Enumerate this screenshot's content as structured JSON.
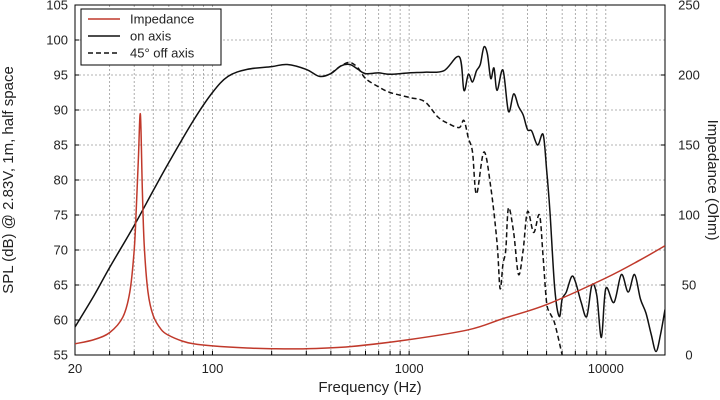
{
  "chart_data": {
    "type": "line",
    "xlabel": "Frequency (Hz)",
    "ylabel_left": "SPL (dB) @ 2.83V, 1m, half space",
    "ylabel_right": "Impedance (Ohm)",
    "x_scale": "log",
    "xlim": [
      20,
      20000
    ],
    "ylim_left": [
      55,
      105
    ],
    "ylim_right": [
      0,
      250
    ],
    "x_tick_labels": [
      "20",
      "100",
      "1000",
      "10000"
    ],
    "x_tick_values": [
      20,
      100,
      1000,
      10000
    ],
    "y_left_ticks": [
      55,
      60,
      65,
      70,
      75,
      80,
      85,
      90,
      95,
      100,
      105
    ],
    "y_right_ticks": [
      0,
      50,
      100,
      150,
      200,
      250
    ],
    "grid": true,
    "legend_position": "top-left",
    "series": [
      {
        "name": "Impedance",
        "axis": "right",
        "color": "#c0392b",
        "dash": "solid",
        "x": [
          20,
          25,
          30,
          35,
          38,
          40,
          41,
          42,
          43,
          44,
          45,
          47,
          50,
          55,
          60,
          70,
          80,
          100,
          150,
          200,
          300,
          500,
          1000,
          2000,
          3000,
          5000,
          10000,
          15000,
          20000
        ],
        "y": [
          8,
          11,
          16,
          27,
          45,
          75,
          105,
          140,
          172,
          118,
          78,
          45,
          28,
          18,
          14,
          10,
          8,
          6.5,
          5,
          4.5,
          4.5,
          6,
          11,
          18,
          26,
          36,
          55,
          68,
          78
        ]
      },
      {
        "name": "on axis",
        "axis": "left",
        "color": "#111111",
        "dash": "solid",
        "x": [
          20,
          25,
          30,
          40,
          50,
          60,
          80,
          100,
          120,
          150,
          200,
          240,
          300,
          350,
          400,
          450,
          500,
          550,
          600,
          700,
          800,
          1000,
          1200,
          1500,
          1800,
          1900,
          2000,
          2100,
          2200,
          2300,
          2400,
          2500,
          2600,
          2700,
          2800,
          3000,
          3200,
          3400,
          3600,
          3800,
          4000,
          4200,
          4500,
          4800,
          5000,
          5200,
          5500,
          5800,
          6000,
          6300,
          6700,
          7000,
          7500,
          8000,
          8500,
          9000,
          9500,
          10000,
          11000,
          12000,
          13000,
          14000,
          15000,
          16000,
          17000,
          18000,
          19000,
          20000
        ],
        "y": [
          59,
          63.5,
          67.5,
          73.5,
          78.5,
          82.5,
          88.5,
          92.5,
          94.8,
          95.8,
          96.2,
          96.5,
          95.8,
          94.8,
          95.2,
          96.3,
          96.5,
          95.8,
          95.2,
          95.3,
          95.1,
          95.3,
          95.4,
          95.6,
          97.6,
          92.8,
          95.1,
          94.0,
          95.6,
          96.5,
          99.0,
          98.0,
          94.5,
          96.0,
          92.8,
          95.7,
          89.8,
          92.3,
          90.5,
          89.3,
          87.2,
          87.0,
          85.0,
          86.5,
          81.5,
          75.5,
          64.5,
          60.5,
          63.0,
          64.0,
          66.2,
          65.5,
          62.5,
          60.5,
          65.0,
          63.5,
          57.5,
          64.5,
          62.5,
          66.5,
          64.0,
          66.5,
          63.0,
          61.0,
          58.0,
          55.5,
          58.0,
          61.5
        ]
      },
      {
        "name": "45° off axis",
        "axis": "left",
        "color": "#111111",
        "dash": "dashed",
        "x": [
          400,
          450,
          500,
          550,
          600,
          700,
          800,
          1000,
          1200,
          1400,
          1600,
          1800,
          1900,
          2000,
          2100,
          2200,
          2400,
          2600,
          2800,
          2900,
          3000,
          3100,
          3200,
          3400,
          3600,
          3800,
          4000,
          4300,
          4600,
          4800,
          5000,
          5200,
          5500,
          6000
        ],
        "y": [
          95.2,
          96.3,
          96.8,
          96.0,
          94.5,
          93.3,
          92.5,
          91.8,
          91.2,
          89.0,
          88.0,
          87.5,
          88.5,
          86.0,
          84.0,
          78.0,
          84.0,
          79.0,
          71.0,
          64.5,
          68.0,
          70.0,
          76.0,
          72.5,
          66.5,
          70.0,
          75.5,
          72.5,
          75.0,
          69.0,
          62.5,
          61.0,
          59.5,
          55.0
        ]
      }
    ]
  }
}
